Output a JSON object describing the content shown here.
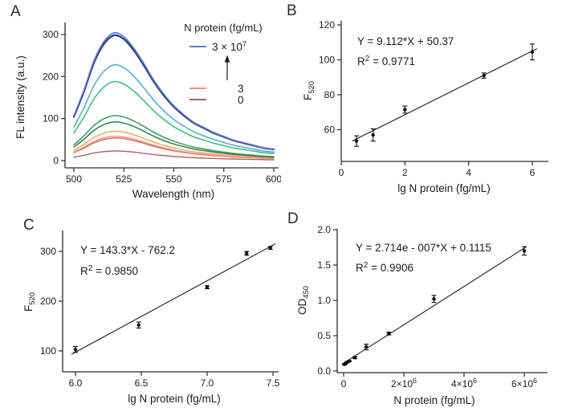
{
  "figure": {
    "background": "#ffffff",
    "text_color": "#1c1c1c",
    "axis_color": "#2a2a2a",
    "point_color": "#111111",
    "fit_line_color": "#1a1a1a"
  },
  "chart_data": [
    {
      "panel": "A",
      "type": "line",
      "title": "",
      "xlabel": "Wavelength (nm)",
      "ylabel": "FL intensity (a.u.)",
      "xlim": [
        500,
        600
      ],
      "ylim": [
        0,
        325
      ],
      "grid": false,
      "xticks": [
        {
          "v": 500,
          "label": "500"
        },
        {
          "v": 525,
          "label": "525"
        },
        {
          "v": 550,
          "label": "550"
        },
        {
          "v": 575,
          "label": "575"
        },
        {
          "v": 600,
          "label": "600"
        }
      ],
      "yticks": [
        {
          "v": 0,
          "label": "0"
        },
        {
          "v": 100,
          "label": "100"
        },
        {
          "v": 200,
          "label": "200"
        },
        {
          "v": 300,
          "label": "300"
        }
      ],
      "x": [
        500,
        505,
        510,
        515,
        520,
        525,
        530,
        535,
        540,
        545,
        550,
        555,
        560,
        565,
        570,
        575,
        580,
        585,
        590,
        595,
        600
      ],
      "envelope": [
        0.35,
        0.55,
        0.78,
        0.93,
        1.0,
        0.97,
        0.88,
        0.76,
        0.63,
        0.52,
        0.43,
        0.36,
        0.3,
        0.26,
        0.22,
        0.19,
        0.16,
        0.14,
        0.12,
        0.1,
        0.09
      ],
      "series": [
        {
          "legend_label": "0",
          "color": "#b05f60",
          "peak_fl": 23,
          "width": 1.4
        },
        {
          "legend_label": null,
          "color": "#e4604c",
          "peak_fl": 54,
          "width": 1.4
        },
        {
          "legend_label": "3",
          "color": "#ef8f7d",
          "peak_fl": 58,
          "width": 1.4
        },
        {
          "legend_label": null,
          "color": "#f6a95f",
          "peak_fl": 70,
          "width": 1.5
        },
        {
          "legend_label": null,
          "color": "#2b7d4c",
          "peak_fl": 92,
          "width": 1.5
        },
        {
          "legend_label": null,
          "color": "#379a5e",
          "peak_fl": 107,
          "width": 1.5
        },
        {
          "legend_label": null,
          "color": "#41bd82",
          "peak_fl": 188,
          "width": 1.6
        },
        {
          "legend_label": null,
          "color": "#56aed6",
          "peak_fl": 228,
          "width": 1.6
        },
        {
          "legend_label": null,
          "color": "#2c3d8f",
          "peak_fl": 298,
          "width": 2.3
        },
        {
          "legend_label": "3 × 10⁷",
          "color": "#5b79c9",
          "peak_fl": 304,
          "width": 1.6
        }
      ],
      "legend": {
        "title": "N protein (fg/mL)",
        "arrow": "up-increasing-concentration",
        "entries": [
          {
            "label": "3 × 10",
            "sup": "7",
            "color": "#5b79c9"
          },
          {
            "label": "3",
            "sup": "",
            "color": "#ef8f7d"
          },
          {
            "label": "0",
            "sup": "",
            "color": "#b05f60"
          }
        ]
      }
    },
    {
      "panel": "B",
      "type": "scatter",
      "equation": "Y = 9.112*X + 50.37",
      "r_squared": "0.9771",
      "xlabel": "lg N protein (fg/mL)",
      "ylabel": {
        "main": "F",
        "sub": "520"
      },
      "xlim": [
        0,
        6.45
      ],
      "ylim": [
        41.8,
        122
      ],
      "grid": false,
      "xticks": [
        {
          "v": 0,
          "label": "0"
        },
        {
          "v": 2,
          "label": "2"
        },
        {
          "v": 4,
          "label": "4"
        },
        {
          "v": 6,
          "label": "6"
        }
      ],
      "yticks": [
        {
          "v": 60,
          "label": "60"
        },
        {
          "v": 80,
          "label": "80"
        },
        {
          "v": 100,
          "label": "100"
        },
        {
          "v": 120,
          "label": "120"
        }
      ],
      "fit": {
        "slope": 9.112,
        "intercept": 50.37,
        "x_start": 0.35,
        "x_end": 6.15
      },
      "points": {
        "x": [
          0.48,
          1.0,
          2.0,
          4.48,
          6.0
        ],
        "y": [
          53.5,
          57,
          71.5,
          91,
          104.5
        ],
        "yerr": [
          3,
          3.5,
          2,
          1.5,
          4.5
        ]
      }
    },
    {
      "panel": "C",
      "type": "scatter",
      "equation": "Y = 143.3*X - 762.2",
      "r_squared": "0.9850",
      "xlabel": "lg N protein (fg/mL)",
      "ylabel": {
        "main": "F",
        "sub": "520"
      },
      "xlim": [
        5.9,
        7.55
      ],
      "ylim": [
        58,
        342
      ],
      "grid": false,
      "xticks": [
        {
          "v": 6.0,
          "label": "6.0"
        },
        {
          "v": 6.5,
          "label": "6.5"
        },
        {
          "v": 7.0,
          "label": "7.0"
        },
        {
          "v": 7.5,
          "label": "7.5"
        }
      ],
      "yticks": [
        {
          "v": 100,
          "label": "100"
        },
        {
          "v": 200,
          "label": "200"
        },
        {
          "v": 300,
          "label": "300"
        }
      ],
      "fit": {
        "slope": 143.3,
        "intercept": -762.2,
        "x_start": 5.97,
        "x_end": 7.52
      },
      "points": {
        "x": [
          6.0,
          6.48,
          7.0,
          7.3,
          7.48
        ],
        "y": [
          103,
          152,
          228,
          296,
          307
        ],
        "yerr": [
          6,
          6,
          3,
          4,
          3
        ]
      }
    },
    {
      "panel": "D",
      "type": "scatter",
      "equation": "Y = 2.714e - 007*X + 0.1115",
      "r_squared": "0.9906",
      "xlabel": "N protein (fg/mL)",
      "ylabel": {
        "main": "OD",
        "sub": "450"
      },
      "xlim": [
        0,
        6400000
      ],
      "ylim": [
        0,
        2.0
      ],
      "grid": false,
      "xticks": [
        {
          "v": 0,
          "label": "0"
        },
        {
          "v": 2000000,
          "label": "2×10",
          "sup": "6"
        },
        {
          "v": 4000000,
          "label": "4×10",
          "sup": "6"
        },
        {
          "v": 6000000,
          "label": "6×10",
          "sup": "6"
        }
      ],
      "yticks": [
        {
          "v": 0.0,
          "label": "0.0"
        },
        {
          "v": 0.5,
          "label": "0.5"
        },
        {
          "v": 1.0,
          "label": "1.0"
        },
        {
          "v": 1.5,
          "label": "1.5"
        },
        {
          "v": 2.0,
          "label": "2.0"
        }
      ],
      "fit": {
        "slope": 2.714e-07,
        "intercept": 0.1115,
        "x_start": 30000,
        "x_end": 6060000
      },
      "points": {
        "x": [
          23000,
          47000,
          94000,
          188000,
          375000,
          750000,
          1500000,
          3000000,
          6000000
        ],
        "y": [
          0.095,
          0.1,
          0.12,
          0.14,
          0.19,
          0.34,
          0.53,
          1.02,
          1.7
        ],
        "yerr": [
          0.008,
          0.008,
          0.008,
          0.01,
          0.015,
          0.04,
          0.02,
          0.05,
          0.06
        ]
      }
    }
  ]
}
